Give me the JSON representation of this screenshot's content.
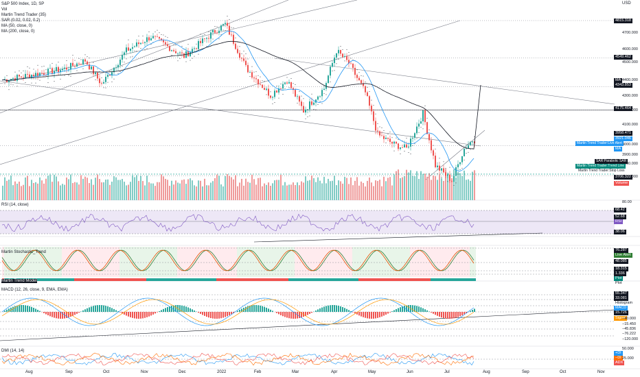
{
  "legend": {
    "title": "S&P 500 Index, 1D, SP",
    "lines": [
      "Vol",
      "Martin Trend Trader (35)",
      "SAR (0.02, 0.02, 0.2)",
      "MA (50, close, 0)",
      "MA (200, close, 0)"
    ]
  },
  "currency": "USD",
  "price_axis": {
    "ticks": [
      "4800.000",
      "4700.000",
      "4600.000",
      "4500.000",
      "4400.000",
      "4300.000",
      "4200.000",
      "4100.000",
      "4000.000",
      "3900.000",
      "3800.000",
      "3700.000",
      "3600.000"
    ],
    "tags": [
      {
        "text": "4815.318",
        "color": "#131722"
      },
      {
        "text": "4549.462",
        "color": "#131722"
      },
      {
        "text": "MA",
        "color": "#131722"
      },
      {
        "text": "4343.853",
        "color": "#131722"
      },
      {
        "text": "4175.464",
        "color": "#131722"
      },
      {
        "text": "3958.471",
        "color": "#131722"
      },
      {
        "text": "3921.046",
        "color": "#2196f3"
      },
      {
        "text": "MA",
        "color": "#2196f3"
      },
      {
        "text": "3706.322",
        "color": "#131722"
      },
      {
        "text": "Volume",
        "color": "#ef5350"
      }
    ]
  },
  "tool_tags": [
    {
      "text": "Martin Trend Trader:Live Alert",
      "color": "#2196f3",
      "fg": "#ffffff"
    },
    {
      "text": "SAR:Parabolic SAR",
      "color": "#131722",
      "fg": "#ffffff"
    },
    {
      "text": "Martin Trend Trader:Trend Line",
      "color": "#00897b",
      "fg": "#ffffff"
    },
    {
      "text": "Martin Trend Trader:Stop Loss",
      "color": "#ffffff",
      "fg": "#131722"
    }
  ],
  "rsi": {
    "label": "RSI (14, close)",
    "ticks": [
      "80.00",
      "68.42",
      "52.68",
      "38.06"
    ],
    "tag": "RSI"
  },
  "stoch": {
    "label": "Martin Stochastic_Trend",
    "ticks": [
      "76.287",
      "48.085",
      "18.315",
      "1.336"
    ],
    "tags": [
      {
        "text": "Live Alert",
        "color": "#2e7d32"
      },
      {
        "text": "Plot",
        "color": "#00897b"
      },
      {
        "text": "Plot",
        "color": "#ffffff"
      }
    ],
    "sublabel": "Martin Trend Model"
  },
  "macd": {
    "label": "MACD (12, 26, close, 9, EMA, EMA)",
    "ticks": [
      "55.347",
      "33.081",
      "15.726",
      "−15.450",
      "−45.836",
      "−76.222",
      "−120.000"
    ],
    "tags": [
      {
        "text": "Histogram",
        "color": "#ffffff",
        "fg": "#131722"
      },
      {
        "text": "MACD",
        "color": "#2196f3",
        "fg": "#ffffff"
      },
      {
        "text": "Signal",
        "color": "#ff9800",
        "fg": "#ffffff"
      }
    ],
    "minus40": "−40.000"
  },
  "dmi": {
    "label": "DMI (14, 14)",
    "ticks": [
      "50.000",
      "25.000"
    ],
    "tags": [
      {
        "text": "+DI",
        "color": "#2196f3"
      },
      {
        "text": "−DI",
        "color": "#ff6d00"
      },
      {
        "text": "ADX",
        "color": "#ef5350"
      }
    ]
  },
  "time_axis": [
    "Aug",
    "Sep",
    "Oct",
    "Nov",
    "Dec",
    "2022",
    "Feb",
    "Mar",
    "Apr",
    "May",
    "Jun",
    "Jul",
    "Aug",
    "Sep",
    "Oct",
    "Nov"
  ],
  "colors": {
    "up": "#26a69a",
    "down": "#ef5350",
    "ma50": "#2196f3",
    "ma200": "#131722",
    "rsi": "#7e57c2",
    "stoch_k": "#e65100",
    "stoch_d": "#2e7d32"
  }
}
